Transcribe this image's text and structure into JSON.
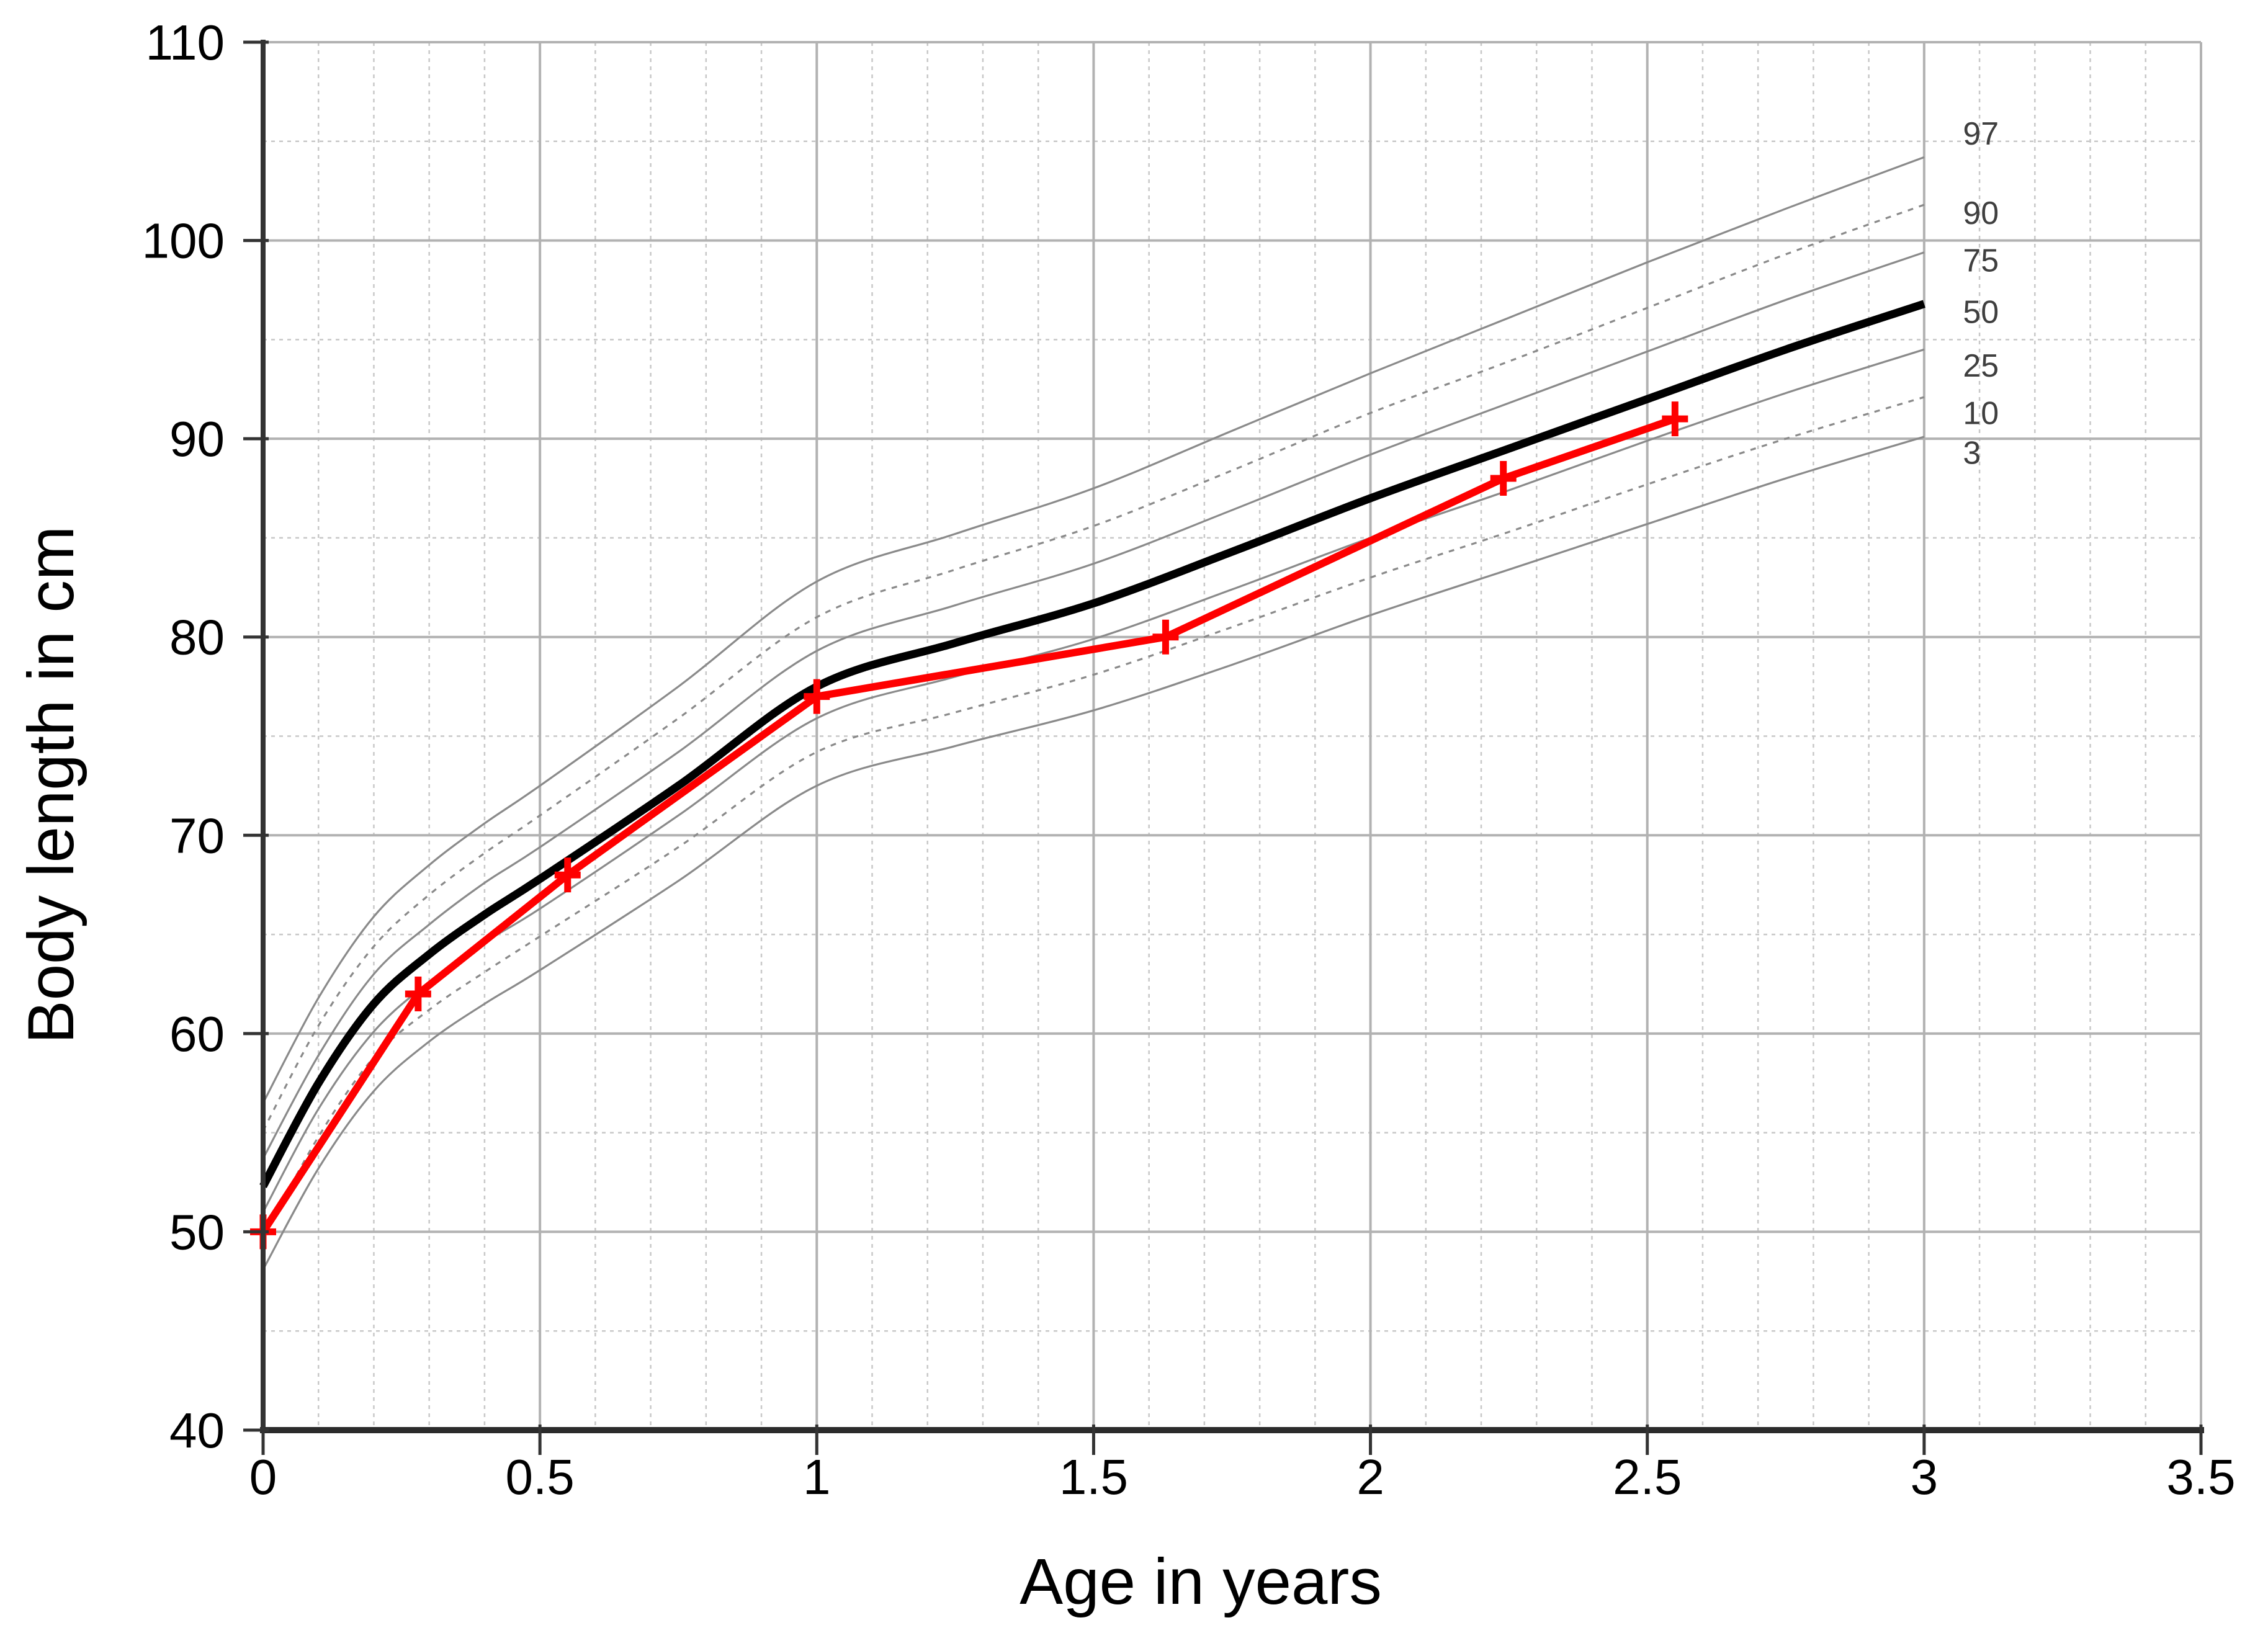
{
  "chart_data": {
    "type": "line",
    "title": "",
    "xlabel": "Age in years",
    "ylabel": "Body length in cm",
    "xlim": [
      0,
      3.5
    ],
    "ylim": [
      40,
      110
    ],
    "x_major_ticks": [
      0,
      0.5,
      1,
      1.5,
      2,
      2.5,
      3,
      3.5
    ],
    "x_tick_labels": [
      "0",
      "0.5",
      "1",
      "1.5",
      "2",
      "2.5",
      "3",
      "3.5"
    ],
    "y_major_ticks": [
      40,
      50,
      60,
      70,
      80,
      90,
      100,
      110
    ],
    "y_tick_labels": [
      "40",
      "50",
      "60",
      "70",
      "80",
      "90",
      "100",
      "110"
    ],
    "x_minor_step": 0.1,
    "y_minor_step": 5,
    "grid": true,
    "legend_position": "labels-right-of-curves",
    "percentile_label_x": 3.07,
    "sample_x": [
      0,
      0.1,
      0.2,
      0.3,
      0.4,
      0.5,
      0.75,
      1.0,
      1.25,
      1.5,
      1.75,
      2.0,
      2.25,
      2.5,
      2.75,
      3.0
    ],
    "percentile_curves": [
      {
        "name": "97",
        "line": "solid",
        "label_v": 105.4,
        "values": [
          56.5,
          61.8,
          65.9,
          68.5,
          70.6,
          72.5,
          77.5,
          82.8,
          85.2,
          87.5,
          90.4,
          93.3,
          96.1,
          98.9,
          101.6,
          104.2
        ]
      },
      {
        "name": "90",
        "line": "dashed",
        "label_v": 101.4,
        "values": [
          55.1,
          60.4,
          64.4,
          67.0,
          69.1,
          71.0,
          75.9,
          81.0,
          83.4,
          85.6,
          88.4,
          91.3,
          93.9,
          96.6,
          99.3,
          101.8
        ]
      },
      {
        "name": "75",
        "line": "solid",
        "label_v": 99.0,
        "values": [
          53.7,
          58.9,
          63.0,
          65.5,
          67.6,
          69.4,
          74.2,
          79.3,
          81.6,
          83.7,
          86.4,
          89.2,
          91.8,
          94.4,
          97.0,
          99.4
        ]
      },
      {
        "name": "50",
        "line": "median",
        "label_v": 96.4,
        "values": [
          52.3,
          57.5,
          61.5,
          64.0,
          66.0,
          67.8,
          72.5,
          77.5,
          79.7,
          81.7,
          84.3,
          87.0,
          89.5,
          92.0,
          94.5,
          96.8
        ]
      },
      {
        "name": "25",
        "line": "solid",
        "label_v": 93.7,
        "values": [
          51.0,
          56.2,
          60.1,
          62.6,
          64.6,
          66.3,
          71.0,
          75.9,
          78.0,
          79.9,
          82.4,
          85.0,
          87.4,
          89.9,
          92.3,
          94.5
        ]
      },
      {
        "name": "10",
        "line": "dashed",
        "label_v": 91.3,
        "values": [
          49.7,
          54.8,
          58.8,
          61.2,
          63.1,
          64.9,
          69.4,
          74.2,
          76.2,
          78.1,
          80.5,
          83.0,
          85.3,
          87.7,
          90.0,
          92.1
        ]
      },
      {
        "name": "3",
        "line": "solid",
        "label_v": 89.3,
        "values": [
          48.1,
          53.2,
          57.1,
          59.6,
          61.5,
          63.2,
          67.7,
          72.5,
          74.5,
          76.3,
          78.6,
          81.1,
          83.4,
          85.7,
          88.0,
          90.1
        ]
      }
    ],
    "patient_series": {
      "name": "patient-measurements",
      "marker": "plus",
      "points": [
        [
          0,
          50
        ],
        [
          0.28,
          62
        ],
        [
          0.55,
          68
        ],
        [
          1.0,
          77
        ],
        [
          1.63,
          80
        ],
        [
          2.24,
          88
        ],
        [
          2.55,
          91
        ]
      ]
    },
    "colors": {
      "median_curve": "#000000",
      "percentile_curve": "#8a8a8a",
      "patient": "#fe0000",
      "grid_major": "#b2b2b2",
      "grid_minor": "#c8c8c8",
      "axis": "#333333",
      "tick_label": "#000000",
      "percentile_label": "#3f3f3f",
      "background": "#ffffff"
    }
  }
}
